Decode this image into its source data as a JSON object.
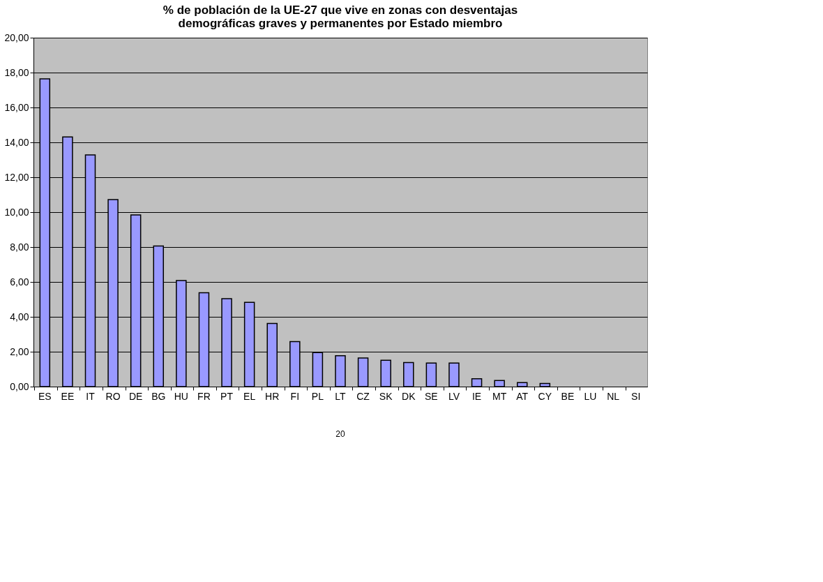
{
  "chart_data": {
    "type": "bar",
    "title": [
      "% de población  de la UE-27 que vive en zonas con desventajas",
      "demográficas  graves y permanentes  por Estado miembro"
    ],
    "categories": [
      "ES",
      "EE",
      "IT",
      "RO",
      "DE",
      "BG",
      "HU",
      "FR",
      "PT",
      "EL",
      "HR",
      "FI",
      "PL",
      "LT",
      "CZ",
      "SK",
      "DK",
      "SE",
      "LV",
      "IE",
      "MT",
      "AT",
      "CY",
      "BE",
      "LU",
      "NL",
      "SI"
    ],
    "values": [
      17.64,
      14.31,
      13.28,
      10.72,
      9.84,
      8.06,
      6.08,
      5.38,
      5.04,
      4.83,
      3.62,
      2.58,
      1.95,
      1.77,
      1.64,
      1.51,
      1.38,
      1.35,
      1.35,
      0.45,
      0.35,
      0.23,
      0.18,
      0,
      0,
      0,
      0
    ],
    "color": "#9999ff",
    "ylim": [
      0,
      20
    ],
    "yticks": [
      {
        "value": 0,
        "label": "0,00"
      },
      {
        "value": 2,
        "label": "2,00"
      },
      {
        "value": 4,
        "label": "4,00"
      },
      {
        "value": 6,
        "label": "6,00"
      },
      {
        "value": 8,
        "label": "8,00"
      },
      {
        "value": 10,
        "label": "10,00"
      },
      {
        "value": 12,
        "label": "12,00"
      },
      {
        "value": 14,
        "label": "14,00"
      },
      {
        "value": 16,
        "label": "16,00"
      },
      {
        "value": 18,
        "label": "18,00"
      },
      {
        "value": 20,
        "label": "20,00"
      }
    ],
    "grid": "y",
    "annotations": [
      "20"
    ]
  }
}
